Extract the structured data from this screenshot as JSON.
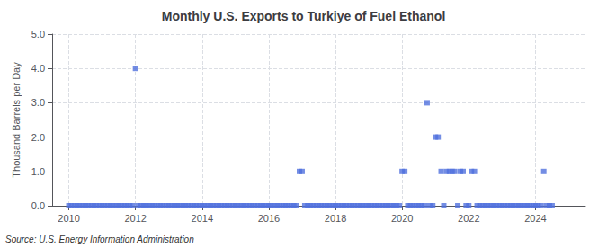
{
  "chart_data": {
    "type": "scatter",
    "title": "Monthly U.S. Exports to Turkiye of Fuel Ethanol",
    "ylabel": "Thousand Barrels per Day",
    "annotations": [
      "Source: U.S. Energy Information Administration"
    ],
    "marker": "square",
    "grid": true,
    "xlim": [
      2009.5,
      2025.5
    ],
    "xticks": [
      2010,
      2012,
      2014,
      2016,
      2018,
      2020,
      2022,
      2024
    ],
    "ylim": [
      0.0,
      5.0
    ],
    "yticks": [
      {
        "value": 0.0,
        "label": "0.0"
      },
      {
        "value": 1.0,
        "label": "1.0"
      },
      {
        "value": 2.0,
        "label": "2.0"
      },
      {
        "value": 3.0,
        "label": "3.0"
      },
      {
        "value": 4.0,
        "label": "4.0"
      },
      {
        "value": 5.0,
        "label": "5.0"
      }
    ],
    "x": [
      2010.0,
      2010.08,
      2010.17,
      2010.25,
      2010.33,
      2010.42,
      2010.5,
      2010.58,
      2010.67,
      2010.75,
      2010.83,
      2010.92,
      2011.0,
      2011.08,
      2011.17,
      2011.25,
      2011.33,
      2011.42,
      2011.5,
      2011.58,
      2011.67,
      2011.75,
      2011.83,
      2011.92,
      2012.0,
      2012.08,
      2012.17,
      2012.25,
      2012.33,
      2012.42,
      2012.5,
      2012.58,
      2012.67,
      2012.75,
      2012.83,
      2012.92,
      2013.0,
      2013.08,
      2013.17,
      2013.25,
      2013.33,
      2013.42,
      2013.5,
      2013.58,
      2013.67,
      2013.75,
      2013.83,
      2013.92,
      2014.0,
      2014.08,
      2014.17,
      2014.25,
      2014.33,
      2014.42,
      2014.5,
      2014.58,
      2014.67,
      2014.75,
      2014.83,
      2014.92,
      2015.0,
      2015.08,
      2015.17,
      2015.25,
      2015.33,
      2015.42,
      2015.5,
      2015.58,
      2015.67,
      2015.75,
      2015.83,
      2015.92,
      2016.0,
      2016.08,
      2016.17,
      2016.25,
      2016.33,
      2016.42,
      2016.5,
      2016.58,
      2016.67,
      2016.75,
      2016.83,
      2016.92,
      2017.0,
      2017.08,
      2017.17,
      2017.25,
      2017.33,
      2017.42,
      2017.5,
      2017.58,
      2017.67,
      2017.75,
      2017.83,
      2017.92,
      2018.0,
      2018.08,
      2018.17,
      2018.25,
      2018.33,
      2018.42,
      2018.5,
      2018.58,
      2018.67,
      2018.75,
      2018.83,
      2018.92,
      2019.0,
      2019.08,
      2019.17,
      2019.25,
      2019.33,
      2019.42,
      2019.5,
      2019.58,
      2019.67,
      2019.75,
      2019.83,
      2019.92,
      2020.0,
      2020.08,
      2020.17,
      2020.25,
      2020.33,
      2020.42,
      2020.5,
      2020.58,
      2020.67,
      2020.75,
      2020.83,
      2020.92,
      2021.0,
      2021.08,
      2021.17,
      2021.25,
      2021.33,
      2021.42,
      2021.5,
      2021.58,
      2021.67,
      2021.75,
      2021.83,
      2021.92,
      2022.0,
      2022.08,
      2022.17,
      2022.25,
      2022.33,
      2022.42,
      2022.5,
      2022.58,
      2022.67,
      2022.75,
      2022.83,
      2022.92,
      2023.0,
      2023.08,
      2023.17,
      2023.25,
      2023.33,
      2023.42,
      2023.5,
      2023.58,
      2023.67,
      2023.75,
      2023.83,
      2023.92,
      2024.0,
      2024.08,
      2024.17,
      2024.25,
      2024.33,
      2024.42,
      2024.5
    ],
    "values": [
      0.0,
      0.0,
      0.0,
      0.0,
      0.0,
      0.0,
      0.0,
      0.0,
      0.0,
      0.0,
      0.0,
      0.0,
      0.0,
      0.0,
      0.0,
      0.0,
      0.0,
      0.0,
      0.0,
      0.0,
      0.0,
      0.0,
      0.0,
      0.0,
      4.0,
      0.0,
      0.0,
      0.0,
      0.0,
      0.0,
      0.0,
      0.0,
      0.0,
      0.0,
      0.0,
      0.0,
      0.0,
      0.0,
      0.0,
      0.0,
      0.0,
      0.0,
      0.0,
      0.0,
      0.0,
      0.0,
      0.0,
      0.0,
      0.0,
      0.0,
      0.0,
      0.0,
      0.0,
      0.0,
      0.0,
      0.0,
      0.0,
      0.0,
      0.0,
      0.0,
      0.0,
      0.0,
      0.0,
      0.0,
      0.0,
      0.0,
      0.0,
      0.0,
      0.0,
      0.0,
      0.0,
      0.0,
      0.0,
      0.0,
      0.0,
      0.0,
      0.0,
      0.0,
      0.0,
      0.0,
      0.0,
      0.0,
      0.0,
      1.0,
      1.0,
      0.0,
      0.0,
      0.0,
      0.0,
      0.0,
      0.0,
      0.0,
      0.0,
      0.0,
      0.0,
      0.0,
      0.0,
      0.0,
      0.0,
      0.0,
      0.0,
      0.0,
      0.0,
      0.0,
      0.0,
      0.0,
      0.0,
      0.0,
      0.0,
      0.0,
      0.0,
      0.0,
      0.0,
      0.0,
      0.0,
      0.0,
      0.0,
      0.0,
      0.0,
      0.0,
      1.0,
      1.0,
      0.0,
      0.0,
      0.0,
      0.0,
      0.0,
      0.0,
      0.0,
      3.0,
      0.0,
      0.0,
      2.0,
      2.0,
      1.0,
      0.0,
      1.0,
      1.0,
      1.0,
      1.0,
      0.0,
      1.0,
      1.0,
      0.0,
      0.0,
      1.0,
      1.0,
      0.0,
      0.0,
      0.0,
      0.0,
      0.0,
      0.0,
      0.0,
      0.0,
      0.0,
      0.0,
      0.0,
      0.0,
      0.0,
      0.0,
      0.0,
      0.0,
      0.0,
      0.0,
      0.0,
      0.0,
      0.0,
      0.0,
      0.0,
      0.0,
      1.0,
      0.0,
      0.0,
      0.0
    ]
  }
}
